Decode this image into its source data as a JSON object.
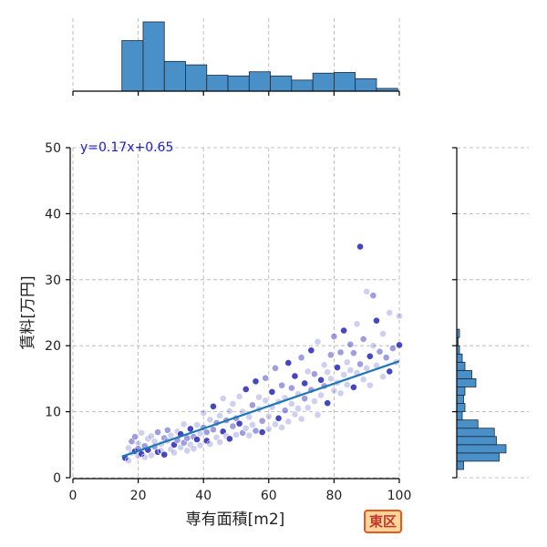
{
  "chart_data": {
    "type": "scatter",
    "xlabel": "専有面積[m2]",
    "ylabel": "賃料[万円]",
    "xlim": [
      0,
      100
    ],
    "ylim": [
      0,
      50
    ],
    "xticks": [
      "0",
      "20",
      "40",
      "60",
      "80",
      "100"
    ],
    "yticks": [
      "0",
      "10",
      "20",
      "30",
      "40",
      "50"
    ],
    "grid": true,
    "annotation": "y=0.17x+0.65",
    "regression": {
      "slope": 0.17,
      "intercept": 0.65,
      "x_range": [
        15,
        100
      ]
    },
    "point_color": "#2626b8",
    "line_color": "#1f77b4",
    "hist_color": "#4a90c8",
    "x_marginal_hist": {
      "bin_edges": [
        15,
        21.5,
        28,
        34.5,
        41,
        47.5,
        54,
        60.5,
        67,
        73.5,
        80,
        86.5,
        93,
        99.5
      ],
      "relative_heights": [
        0.73,
        1.0,
        0.43,
        0.38,
        0.23,
        0.22,
        0.28,
        0.22,
        0.16,
        0.26,
        0.27,
        0.18,
        0.04
      ]
    },
    "y_marginal_hist": {
      "bin_edges": [
        1.25,
        2.5,
        3.75,
        5,
        6.25,
        7.5,
        8.75,
        10,
        11.25,
        12.5,
        13.75,
        15,
        16.25,
        17.5,
        18.75,
        20,
        21.25,
        22.5
      ],
      "relative_heights": [
        0.1,
        0.62,
        0.72,
        0.58,
        0.55,
        0.31,
        0.08,
        0.12,
        0.1,
        0.12,
        0.28,
        0.22,
        0.12,
        0.08,
        0.04,
        0.02,
        0.04
      ]
    },
    "points": [
      [
        16,
        3.0
      ],
      [
        17,
        4.5
      ],
      [
        17,
        2.6
      ],
      [
        18,
        5.5
      ],
      [
        18,
        3.8
      ],
      [
        19,
        4.0
      ],
      [
        19,
        6.2
      ],
      [
        20,
        3.3
      ],
      [
        20,
        5.2
      ],
      [
        20,
        4.4
      ],
      [
        21,
        3.6
      ],
      [
        21,
        6.8
      ],
      [
        22,
        4.8
      ],
      [
        22,
        3.1
      ],
      [
        23,
        5.9
      ],
      [
        23,
        4.2
      ],
      [
        24,
        3.4
      ],
      [
        24,
        6.3
      ],
      [
        25,
        4.7
      ],
      [
        25,
        5.5
      ],
      [
        26,
        3.9
      ],
      [
        26,
        6.9
      ],
      [
        27,
        5.1
      ],
      [
        27,
        4.1
      ],
      [
        28,
        6.0
      ],
      [
        28,
        3.5
      ],
      [
        29,
        5.6
      ],
      [
        29,
        7.2
      ],
      [
        30,
        4.3
      ],
      [
        30,
        6.4
      ],
      [
        31,
        5.0
      ],
      [
        31,
        3.8
      ],
      [
        32,
        7.0
      ],
      [
        32,
        5.7
      ],
      [
        33,
        4.6
      ],
      [
        33,
        6.6
      ],
      [
        34,
        5.3
      ],
      [
        34,
        8.1
      ],
      [
        35,
        4.1
      ],
      [
        35,
        6.0
      ],
      [
        36,
        7.4
      ],
      [
        36,
        5.0
      ],
      [
        37,
        6.2
      ],
      [
        37,
        4.4
      ],
      [
        38,
        8.0
      ],
      [
        38,
        5.8
      ],
      [
        39,
        6.7
      ],
      [
        39,
        4.9
      ],
      [
        40,
        7.6
      ],
      [
        40,
        9.8
      ],
      [
        41,
        5.6
      ],
      [
        41,
        6.9
      ],
      [
        42,
        8.8
      ],
      [
        42,
        5.1
      ],
      [
        43,
        7.3
      ],
      [
        43,
        10.8
      ],
      [
        44,
        6.1
      ],
      [
        44,
        8.3
      ],
      [
        45,
        5.4
      ],
      [
        45,
        9.4
      ],
      [
        46,
        7.0
      ],
      [
        46,
        12.0
      ],
      [
        47,
        6.3
      ],
      [
        47,
        8.7
      ],
      [
        48,
        10.1
      ],
      [
        48,
        5.9
      ],
      [
        49,
        7.8
      ],
      [
        49,
        11.2
      ],
      [
        50,
        6.5
      ],
      [
        50,
        9.0
      ],
      [
        51,
        8.2
      ],
      [
        51,
        12.3
      ],
      [
        52,
        6.8
      ],
      [
        52,
        10.0
      ],
      [
        53,
        7.5
      ],
      [
        53,
        13.4
      ],
      [
        54,
        9.2
      ],
      [
        54,
        6.4
      ],
      [
        55,
        11.0
      ],
      [
        55,
        8.0
      ],
      [
        56,
        14.6
      ],
      [
        56,
        7.1
      ],
      [
        57,
        10.4
      ],
      [
        57,
        12.2
      ],
      [
        58,
        8.6
      ],
      [
        58,
        6.9
      ],
      [
        59,
        11.7
      ],
      [
        59,
        15.1
      ],
      [
        60,
        9.3
      ],
      [
        60,
        7.4
      ],
      [
        61,
        13.0
      ],
      [
        61,
        10.7
      ],
      [
        62,
        8.1
      ],
      [
        62,
        16.6
      ],
      [
        63,
        11.5
      ],
      [
        63,
        9.0
      ],
      [
        64,
        14.0
      ],
      [
        64,
        7.6
      ],
      [
        65,
        12.1
      ],
      [
        65,
        10.2
      ],
      [
        66,
        17.4
      ],
      [
        66,
        8.5
      ],
      [
        67,
        13.6
      ],
      [
        67,
        11.2
      ],
      [
        68,
        9.6
      ],
      [
        68,
        15.4
      ],
      [
        69,
        12.7
      ],
      [
        69,
        10.5
      ],
      [
        70,
        18.2
      ],
      [
        70,
        8.9
      ],
      [
        71,
        14.3
      ],
      [
        71,
        12.0
      ],
      [
        72,
        16.1
      ],
      [
        72,
        10.6
      ],
      [
        73,
        13.3
      ],
      [
        73,
        19.3
      ],
      [
        74,
        11.6
      ],
      [
        74,
        15.7
      ],
      [
        75,
        9.5
      ],
      [
        75,
        20.6
      ],
      [
        76,
        14.8
      ],
      [
        76,
        12.5
      ],
      [
        77,
        17.1
      ],
      [
        77,
        13.9
      ],
      [
        78,
        16.0
      ],
      [
        78,
        11.3
      ],
      [
        79,
        18.6
      ],
      [
        79,
        15.0
      ],
      [
        80,
        13.2
      ],
      [
        80,
        21.4
      ],
      [
        81,
        16.7
      ],
      [
        81,
        14.4
      ],
      [
        82,
        19.0
      ],
      [
        82,
        12.8
      ],
      [
        83,
        15.6
      ],
      [
        83,
        22.3
      ],
      [
        84,
        17.5
      ],
      [
        84,
        14.1
      ],
      [
        85,
        20.2
      ],
      [
        85,
        16.3
      ],
      [
        86,
        13.7
      ],
      [
        86,
        18.9
      ],
      [
        87,
        15.9
      ],
      [
        87,
        23.3
      ],
      [
        88,
        17.2
      ],
      [
        88,
        35.0
      ],
      [
        89,
        14.9
      ],
      [
        89,
        21.0
      ],
      [
        90,
        28.2
      ],
      [
        90,
        16.6
      ],
      [
        91,
        18.4
      ],
      [
        91,
        14.0
      ],
      [
        92,
        20.0
      ],
      [
        92,
        27.6
      ],
      [
        93,
        17.0
      ],
      [
        93,
        23.8
      ],
      [
        94,
        19.1
      ],
      [
        95,
        15.3
      ],
      [
        95,
        21.8
      ],
      [
        96,
        18.2
      ],
      [
        97,
        16.1
      ],
      [
        97,
        25.0
      ],
      [
        98,
        19.6
      ],
      [
        99,
        17.5
      ],
      [
        100,
        24.5
      ],
      [
        100,
        20.1
      ]
    ]
  },
  "badge": {
    "label": "東区"
  }
}
